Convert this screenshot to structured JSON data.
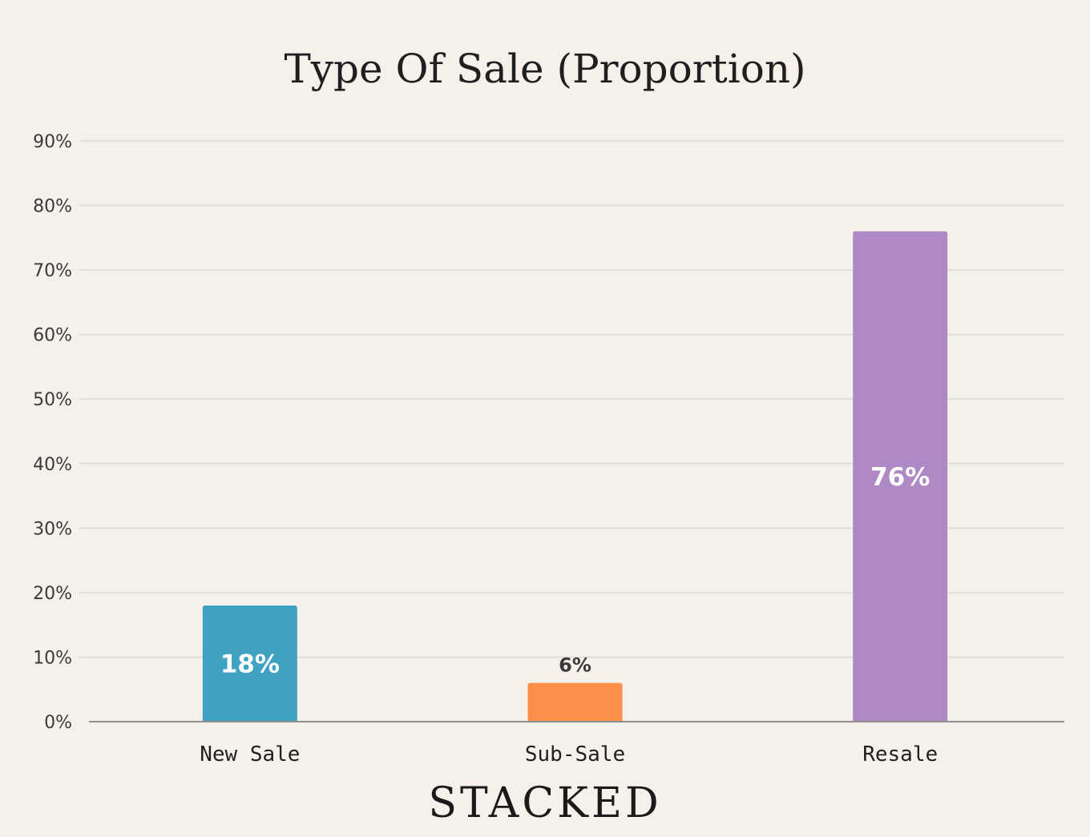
{
  "chart_data": {
    "type": "bar",
    "title": "Type Of Sale (Proportion)",
    "categories": [
      "New Sale",
      "Sub-Sale",
      "Resale"
    ],
    "values": [
      18,
      6,
      76
    ],
    "value_labels": [
      "18%",
      "6%",
      "76%"
    ],
    "colors": [
      "#3fa2c1",
      "#fb9148",
      "#ae89c5"
    ],
    "ylim": [
      0,
      90
    ],
    "yticks": [
      0,
      10,
      20,
      30,
      40,
      50,
      60,
      70,
      80,
      90
    ],
    "ytick_labels": [
      "0%",
      "10%",
      "20%",
      "30%",
      "40%",
      "50%",
      "60%",
      "70%",
      "80%",
      "90%"
    ],
    "grid": true,
    "xlabel": "",
    "ylabel": ""
  },
  "brand": {
    "text": "STACKED"
  }
}
